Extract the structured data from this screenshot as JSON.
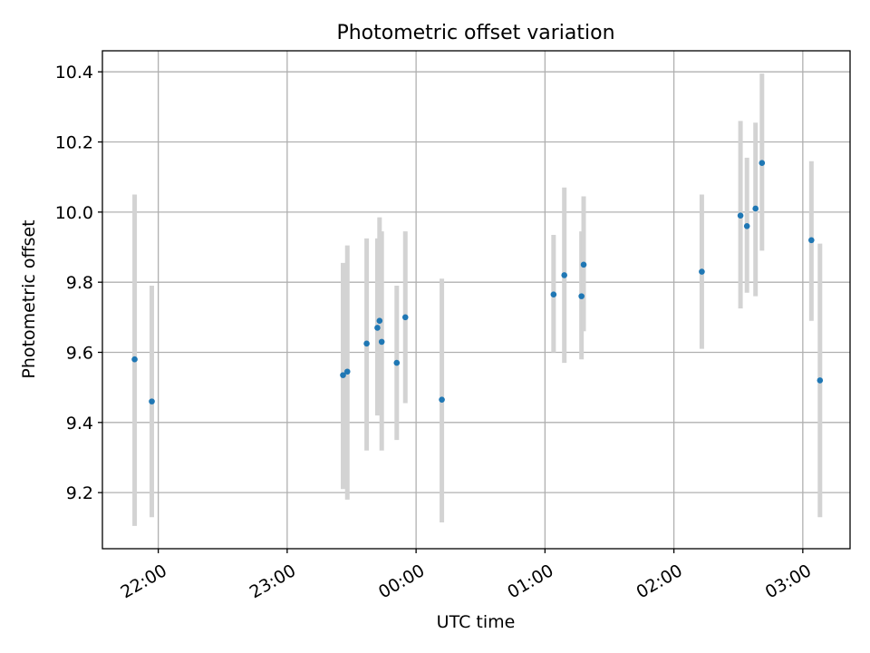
{
  "chart_data": {
    "type": "scatter",
    "title": "Photometric offset variation",
    "xlabel": "UTC time",
    "ylabel": "Photometric offset",
    "grid": true,
    "x_axis": "time",
    "xlim": [
      "21:34",
      "03:22"
    ],
    "ylim": [
      9.04,
      10.46
    ],
    "x_ticks": [
      "22:00",
      "23:00",
      "00:00",
      "01:00",
      "02:00",
      "03:00"
    ],
    "y_ticks": [
      "9.2",
      "9.4",
      "9.6",
      "9.8",
      "10.0",
      "10.2",
      "10.4"
    ],
    "colors": {
      "marker": "#1f77b4",
      "error_bar": "#d3d3d3",
      "grid": "#b0b0b0"
    },
    "points": [
      {
        "x": "21:49",
        "y": 9.58,
        "ylow": 9.105,
        "yhigh": 10.05
      },
      {
        "x": "21:57",
        "y": 9.46,
        "ylow": 9.13,
        "yhigh": 9.79
      },
      {
        "x": "23:26",
        "y": 9.535,
        "ylow": 9.21,
        "yhigh": 9.855
      },
      {
        "x": "23:28",
        "y": 9.545,
        "ylow": 9.18,
        "yhigh": 9.905
      },
      {
        "x": "23:37",
        "y": 9.625,
        "ylow": 9.32,
        "yhigh": 9.925
      },
      {
        "x": "23:42",
        "y": 9.67,
        "ylow": 9.42,
        "yhigh": 9.925
      },
      {
        "x": "23:43",
        "y": 9.69,
        "ylow": 9.44,
        "yhigh": 9.985
      },
      {
        "x": "23:44",
        "y": 9.63,
        "ylow": 9.32,
        "yhigh": 9.945
      },
      {
        "x": "23:51",
        "y": 9.57,
        "ylow": 9.35,
        "yhigh": 9.79
      },
      {
        "x": "23:55",
        "y": 9.7,
        "ylow": 9.455,
        "yhigh": 9.945
      },
      {
        "x": "00:12",
        "y": 9.465,
        "ylow": 9.115,
        "yhigh": 9.81
      },
      {
        "x": "01:04",
        "y": 9.765,
        "ylow": 9.6,
        "yhigh": 9.935
      },
      {
        "x": "01:09",
        "y": 9.82,
        "ylow": 9.57,
        "yhigh": 10.07
      },
      {
        "x": "01:17",
        "y": 9.76,
        "ylow": 9.58,
        "yhigh": 9.945
      },
      {
        "x": "01:18",
        "y": 9.85,
        "ylow": 9.66,
        "yhigh": 10.045
      },
      {
        "x": "02:13",
        "y": 9.83,
        "ylow": 9.61,
        "yhigh": 10.05
      },
      {
        "x": "02:31",
        "y": 9.99,
        "ylow": 9.725,
        "yhigh": 10.26
      },
      {
        "x": "02:34",
        "y": 9.96,
        "ylow": 9.77,
        "yhigh": 10.155
      },
      {
        "x": "02:38",
        "y": 10.01,
        "ylow": 9.76,
        "yhigh": 10.255
      },
      {
        "x": "02:41",
        "y": 10.14,
        "ylow": 9.89,
        "yhigh": 10.395
      },
      {
        "x": "03:04",
        "y": 9.92,
        "ylow": 9.69,
        "yhigh": 10.145
      },
      {
        "x": "03:08",
        "y": 9.52,
        "ylow": 9.13,
        "yhigh": 9.91
      }
    ]
  }
}
